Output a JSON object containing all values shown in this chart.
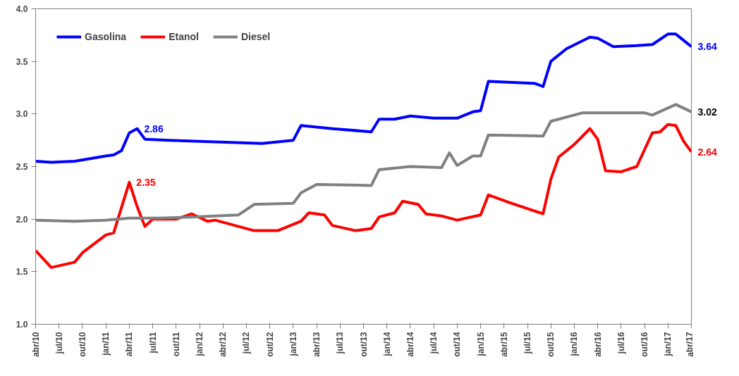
{
  "chart_data": {
    "type": "line",
    "xlim": [
      "2010-04",
      "2017-04"
    ],
    "ylim": [
      1.0,
      4.0
    ],
    "yticks": [
      {
        "value": 1.0,
        "label": "1.0"
      },
      {
        "value": 1.5,
        "label": "1.5"
      },
      {
        "value": 2.0,
        "label": "2.0"
      },
      {
        "value": 2.5,
        "label": "2.5"
      },
      {
        "value": 3.0,
        "label": "3.0"
      },
      {
        "value": 3.5,
        "label": "3.5"
      },
      {
        "value": 4.0,
        "label": "4.0"
      }
    ],
    "xticks": [
      {
        "value": "2010-04",
        "label": "abr/10"
      },
      {
        "value": "2010-07",
        "label": "jul/10"
      },
      {
        "value": "2010-10",
        "label": "out/10"
      },
      {
        "value": "2011-01",
        "label": "jan/11"
      },
      {
        "value": "2011-04",
        "label": "abr/11"
      },
      {
        "value": "2011-07",
        "label": "jul/11"
      },
      {
        "value": "2011-10",
        "label": "out/11"
      },
      {
        "value": "2012-01",
        "label": "jan/12"
      },
      {
        "value": "2012-04",
        "label": "abr/12"
      },
      {
        "value": "2012-07",
        "label": "jul/12"
      },
      {
        "value": "2012-10",
        "label": "out/12"
      },
      {
        "value": "2013-01",
        "label": "jan/13"
      },
      {
        "value": "2013-04",
        "label": "abr/13"
      },
      {
        "value": "2013-07",
        "label": "jul/13"
      },
      {
        "value": "2013-10",
        "label": "out/13"
      },
      {
        "value": "2014-01",
        "label": "jan/14"
      },
      {
        "value": "2014-04",
        "label": "abr/14"
      },
      {
        "value": "2014-07",
        "label": "jul/14"
      },
      {
        "value": "2014-10",
        "label": "out/14"
      },
      {
        "value": "2015-01",
        "label": "jan/15"
      },
      {
        "value": "2015-04",
        "label": "abr/15"
      },
      {
        "value": "2015-07",
        "label": "jul/15"
      },
      {
        "value": "2015-10",
        "label": "out/15"
      },
      {
        "value": "2016-01",
        "label": "jan/16"
      },
      {
        "value": "2016-04",
        "label": "abr/16"
      },
      {
        "value": "2016-07",
        "label": "jul/16"
      },
      {
        "value": "2016-10",
        "label": "out/16"
      },
      {
        "value": "2017-01",
        "label": "jan/17"
      },
      {
        "value": "2017-04",
        "label": "abr/17"
      }
    ],
    "grid": false,
    "legend": "top left",
    "marker": "none",
    "line_style": "solid",
    "annotations": [
      {
        "text": "2.86",
        "x": "2011-05",
        "y": 2.86
      },
      {
        "text": "2.35",
        "x": "2011-04",
        "y": 2.35
      },
      {
        "text": "3.64",
        "x": "2017-04",
        "y": 3.64
      },
      {
        "text": "3.02",
        "x": "2017-04",
        "y": 3.02
      },
      {
        "text": "2.64",
        "x": "2017-04",
        "y": 2.64
      }
    ],
    "series": [
      {
        "name": "Gasolina",
        "color": "#0000ff",
        "x": [
          "2010-04",
          "2010-06",
          "2010-09",
          "2011-01",
          "2011-02",
          "2011-03",
          "2011-04",
          "2011-05",
          "2011-06",
          "2011-09",
          "2012-01",
          "2012-09",
          "2013-01",
          "2013-02",
          "2013-06",
          "2013-11",
          "2013-12",
          "2014-02",
          "2014-04",
          "2014-07",
          "2014-10",
          "2014-12",
          "2015-01",
          "2015-02",
          "2015-05",
          "2015-08",
          "2015-09",
          "2015-10",
          "2015-12",
          "2016-03",
          "2016-04",
          "2016-06",
          "2016-09",
          "2016-11",
          "2017-01",
          "2017-02",
          "2017-04"
        ],
        "values": [
          2.55,
          2.54,
          2.55,
          2.6,
          2.61,
          2.65,
          2.82,
          2.86,
          2.76,
          2.75,
          2.74,
          2.72,
          2.75,
          2.89,
          2.86,
          2.83,
          2.95,
          2.95,
          2.98,
          2.96,
          2.96,
          3.02,
          3.03,
          3.31,
          3.3,
          3.29,
          3.26,
          3.5,
          3.62,
          3.73,
          3.72,
          3.64,
          3.65,
          3.66,
          3.76,
          3.76,
          3.64
        ]
      },
      {
        "name": "Etanol",
        "color": "#ff0000",
        "x": [
          "2010-04",
          "2010-06",
          "2010-09",
          "2010-10",
          "2011-01",
          "2011-02",
          "2011-04",
          "2011-05",
          "2011-06",
          "2011-07",
          "2011-10",
          "2011-12",
          "2012-02",
          "2012-03",
          "2012-08",
          "2012-11",
          "2013-01",
          "2013-02",
          "2013-03",
          "2013-05",
          "2013-06",
          "2013-09",
          "2013-11",
          "2013-12",
          "2014-02",
          "2014-03",
          "2014-05",
          "2014-06",
          "2014-08",
          "2014-10",
          "2015-01",
          "2015-02",
          "2015-05",
          "2015-09",
          "2015-10",
          "2015-11",
          "2016-01",
          "2016-03",
          "2016-04",
          "2016-05",
          "2016-07",
          "2016-09",
          "2016-11",
          "2016-12",
          "2017-01",
          "2017-02",
          "2017-03",
          "2017-04"
        ],
        "values": [
          1.7,
          1.54,
          1.59,
          1.68,
          1.85,
          1.87,
          2.35,
          2.12,
          1.93,
          2.0,
          2.0,
          2.05,
          1.98,
          1.99,
          1.89,
          1.89,
          1.95,
          1.98,
          2.06,
          2.04,
          1.94,
          1.89,
          1.91,
          2.02,
          2.06,
          2.17,
          2.14,
          2.05,
          2.03,
          1.99,
          2.04,
          2.23,
          2.15,
          2.05,
          2.38,
          2.59,
          2.71,
          2.86,
          2.76,
          2.46,
          2.45,
          2.5,
          2.82,
          2.83,
          2.9,
          2.89,
          2.74,
          2.64
        ]
      },
      {
        "name": "Diesel",
        "color": "#808080",
        "x": [
          "2010-04",
          "2010-09",
          "2011-01",
          "2011-04",
          "2011-08",
          "2011-12",
          "2012-06",
          "2012-08",
          "2013-01",
          "2013-02",
          "2013-04",
          "2013-11",
          "2013-12",
          "2014-04",
          "2014-08",
          "2014-09",
          "2014-10",
          "2014-12",
          "2015-01",
          "2015-02",
          "2015-09",
          "2015-10",
          "2016-02",
          "2016-10",
          "2016-11",
          "2017-02",
          "2017-04"
        ],
        "values": [
          1.99,
          1.98,
          1.99,
          2.01,
          2.01,
          2.02,
          2.04,
          2.14,
          2.15,
          2.25,
          2.33,
          2.32,
          2.47,
          2.5,
          2.49,
          2.63,
          2.51,
          2.6,
          2.6,
          2.8,
          2.79,
          2.93,
          3.01,
          3.01,
          2.99,
          3.09,
          3.02
        ]
      }
    ]
  }
}
